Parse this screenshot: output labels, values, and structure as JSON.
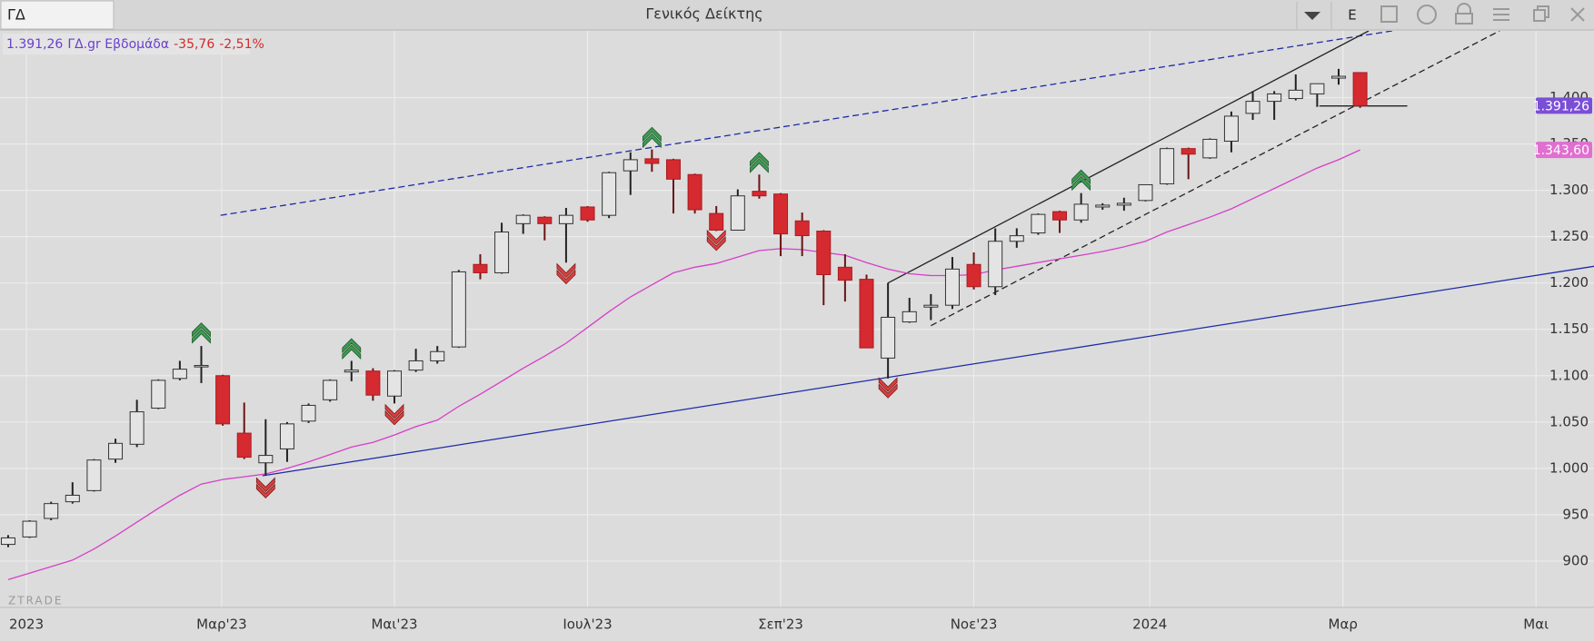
{
  "toolbar": {
    "symbol": "ΓΔ",
    "title": "Γενικός Δείκτης",
    "button": "E"
  },
  "info": {
    "price": "1.391,26",
    "name": "ΓΔ.gr Εβδομάδα",
    "change": "-35,76",
    "change_pct": "-2,51%"
  },
  "watermark": "ZTRADE",
  "chart_data": {
    "type": "candlestick",
    "up_color": "#e4e4e4",
    "down_color": "#d52a30",
    "grid": true,
    "xlim": [
      -0.38,
      73.9
    ],
    "ylim": [
      850,
      1472
    ],
    "xticks": [
      {
        "value": 0.85,
        "label": "2023"
      },
      {
        "value": 9.95,
        "label": "Μαρ'23"
      },
      {
        "value": 18,
        "label": "Μαι'23"
      },
      {
        "value": 27,
        "label": "Ιουλ'23"
      },
      {
        "value": 36,
        "label": "Σεπ'23"
      },
      {
        "value": 45,
        "label": "Νοε'23"
      },
      {
        "value": 53.2,
        "label": "2024"
      },
      {
        "value": 62.2,
        "label": "Μαρ"
      },
      {
        "value": 71.2,
        "label": "Μαι"
      }
    ],
    "yticks": [
      900,
      950,
      {
        "value": 1000,
        "label": "1.000"
      },
      {
        "value": 1050,
        "label": "1.050"
      },
      {
        "value": 1100,
        "label": "1.100"
      },
      {
        "value": 1150,
        "label": "1.150"
      },
      {
        "value": 1200,
        "label": "1.200"
      },
      {
        "value": 1250,
        "label": "1.250"
      },
      {
        "value": 1300,
        "label": "1.300"
      },
      {
        "value": 1350,
        "label": "1.350"
      },
      {
        "value": 1400,
        "label": "1.400"
      }
    ],
    "x": [
      0,
      1,
      2,
      3,
      4,
      5,
      6,
      7,
      8,
      9,
      10,
      11,
      12,
      13,
      14,
      15,
      16,
      17,
      18,
      19,
      20,
      21,
      22,
      23,
      24,
      25,
      26,
      27,
      28,
      29,
      30,
      31,
      32,
      33,
      34,
      35,
      36,
      37,
      38,
      39,
      40,
      41,
      42,
      43,
      44,
      45,
      46,
      47,
      48,
      49,
      50,
      51,
      52,
      53,
      54,
      55,
      56,
      57,
      58,
      59,
      60,
      61,
      62,
      63
    ],
    "open": [
      918,
      926,
      946,
      964,
      976,
      1010,
      1026,
      1065,
      1097,
      1110,
      1100,
      1038,
      1006,
      1021,
      1051,
      1074,
      1104,
      1105,
      1078,
      1106,
      1116,
      1131,
      1220,
      1211,
      1264,
      1271,
      1264,
      1282,
      1273,
      1321,
      1334,
      1333,
      1317,
      1275,
      1257,
      1299,
      1296,
      1267,
      1256,
      1217,
      1204,
      1119,
      1158,
      1174,
      1176,
      1220,
      1196,
      1245,
      1254,
      1277,
      1268,
      1282,
      1284,
      1289,
      1307,
      1345,
      1335,
      1353,
      1383,
      1396,
      1399,
      1404,
      1421,
      1427
    ],
    "high": [
      928,
      944,
      964,
      985,
      1010,
      1032,
      1074,
      1096,
      1116,
      1132,
      1101,
      1071,
      1053,
      1050,
      1070,
      1096,
      1116,
      1108,
      1106,
      1129,
      1132,
      1214,
      1231,
      1265,
      1274,
      1272,
      1281,
      1283,
      1320,
      1341,
      1344,
      1334,
      1318,
      1283,
      1301,
      1317,
      1297,
      1276,
      1257,
      1231,
      1209,
      1200,
      1184,
      1188,
      1228,
      1233,
      1259,
      1259,
      1275,
      1278,
      1297,
      1286,
      1292,
      1306,
      1346,
      1346,
      1356,
      1385,
      1407,
      1407,
      1425,
      1415,
      1431,
      1427
    ],
    "low": [
      915,
      925,
      944,
      962,
      975,
      1006,
      1023,
      1064,
      1095,
      1092,
      1046,
      1010,
      992,
      1007,
      1049,
      1072,
      1094,
      1073,
      1070,
      1104,
      1113,
      1130,
      1204,
      1210,
      1253,
      1246,
      1222,
      1266,
      1270,
      1295,
      1320,
      1275,
      1275,
      1256,
      1257,
      1291,
      1229,
      1229,
      1176,
      1180,
      1130,
      1097,
      1157,
      1160,
      1172,
      1193,
      1187,
      1238,
      1252,
      1254,
      1265,
      1279,
      1278,
      1288,
      1306,
      1312,
      1334,
      1341,
      1376,
      1376,
      1397,
      1390,
      1414,
      1389
    ],
    "close": [
      925,
      943,
      962,
      971,
      1009,
      1027,
      1061,
      1095,
      1107,
      1111,
      1048,
      1012,
      1014,
      1048,
      1068,
      1095,
      1106,
      1079,
      1105,
      1116,
      1126,
      1212,
      1211,
      1255,
      1273,
      1264,
      1273,
      1268,
      1319,
      1333,
      1329,
      1312,
      1279,
      1257,
      1294,
      1294,
      1253,
      1251,
      1209,
      1203,
      1130,
      1163,
      1169,
      1176,
      1215,
      1196,
      1245,
      1251,
      1274,
      1268,
      1285,
      1284,
      1286,
      1306,
      1345,
      1339,
      1355,
      1380,
      1396,
      1404,
      1408,
      1415,
      1423,
      1391.26
    ],
    "ma": {
      "color": "#d63fc8",
      "values": [
        880,
        887,
        894,
        901,
        913,
        927,
        942,
        957,
        971,
        983,
        988,
        991,
        994,
        1000,
        1007,
        1015,
        1023,
        1028,
        1036,
        1045,
        1052,
        1067,
        1080,
        1094,
        1108,
        1121,
        1135,
        1152,
        1169,
        1185,
        1198,
        1211,
        1217,
        1221,
        1228,
        1235,
        1237,
        1236,
        1233,
        1230,
        1222,
        1215,
        1210,
        1208,
        1208,
        1209,
        1214,
        1218,
        1222,
        1226,
        1230,
        1234,
        1239,
        1245,
        1255,
        1263,
        1271,
        1280,
        1291,
        1302,
        1313,
        1324,
        1333,
        1343.6
      ]
    },
    "last_price": {
      "value": 1391.26,
      "label": "1.391,26",
      "color": "#7a4fd6"
    },
    "ma_last": {
      "value": 1343.6,
      "label": "1.343,60",
      "color": "#e06fd0"
    },
    "trendlines": [
      {
        "color": "#1c2aa8",
        "style": "dashed",
        "x": [
          9.9,
          64.5
        ],
        "y": [
          1273,
          1472
        ]
      },
      {
        "color": "#1c2aa8",
        "style": "solid",
        "x": [
          11.85,
          73.9
        ],
        "y": [
          992,
          1218
        ]
      },
      {
        "color": "#222222",
        "style": "solid",
        "x": [
          41,
          63.4
        ],
        "y": [
          1200,
          1472
        ]
      },
      {
        "color": "#222222",
        "style": "dashed",
        "x": [
          43,
          69.5
        ],
        "y": [
          1154,
          1472
        ]
      },
      {
        "color": "#222222",
        "style": "solid",
        "x": [
          61.1,
          65.2
        ],
        "y": [
          1391,
          1391
        ]
      }
    ],
    "buy_signals": {
      "color": "#3f9a52",
      "x": [
        9,
        16,
        30,
        35,
        50
      ],
      "y": [
        1152,
        1135,
        1363,
        1336,
        1317
      ]
    },
    "sell_signals": {
      "color": "#d9403f",
      "x": [
        12,
        18,
        26,
        33,
        41
      ],
      "y": [
        973,
        1052,
        1204,
        1240,
        1081
      ]
    }
  }
}
